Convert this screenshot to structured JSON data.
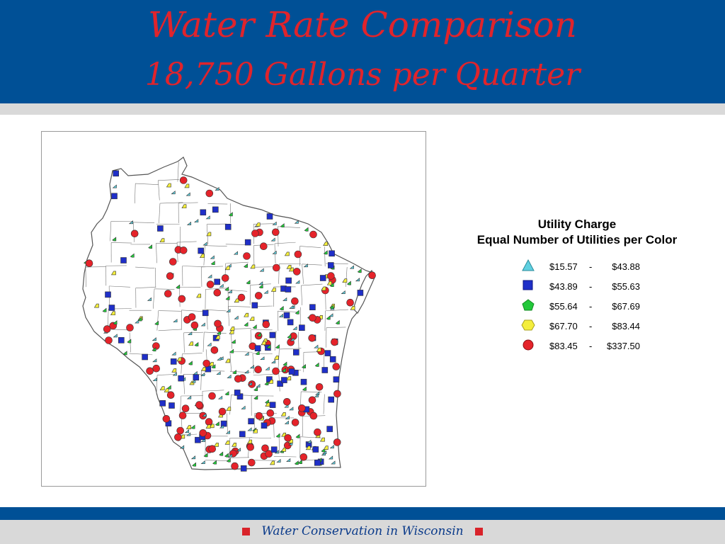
{
  "header": {
    "title": "Water Rate Comparison",
    "subtitle": "18,750 Gallons per Quarter"
  },
  "legend": {
    "title_line1": "Utility Charge",
    "title_line2": "Equal Number of Utilities per Color",
    "items": [
      {
        "low": "$15.57",
        "high": "$43.88",
        "symbol": "triangle-icon",
        "color": "#5fd0e0"
      },
      {
        "low": "$43.89",
        "high": "$55.63",
        "symbol": "square-icon",
        "color": "#1f2fc8"
      },
      {
        "low": "$55.64",
        "high": "$67.69",
        "symbol": "pentagon-icon",
        "color": "#22c83a"
      },
      {
        "low": "$67.70",
        "high": "$83.44",
        "symbol": "hexagon-icon",
        "color": "#f4ee3c"
      },
      {
        "low": "$83.45",
        "high": "$337.50",
        "symbol": "circle-icon",
        "color": "#e5232a"
      }
    ],
    "separator": "-"
  },
  "footer": {
    "text": "Water Conservation in Wisconsin"
  },
  "colors": {
    "header_bg": "#005096",
    "title_red": "#e0242c",
    "band_grey": "#d9d9d9",
    "footer_text": "#0a3a8a"
  }
}
